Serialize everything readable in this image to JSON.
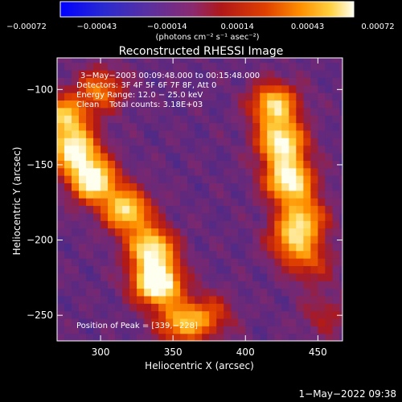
{
  "chart_data": {
    "type": "heatmap",
    "title": "Reconstructed RHESSI Image",
    "xlabel": "Heliocentric X (arcsec)",
    "ylabel": "Heliocentric Y (arcsec)",
    "xlim": [
      270,
      467
    ],
    "ylim": [
      -267,
      -79
    ],
    "x_ticks": [
      300,
      350,
      400,
      450
    ],
    "y_ticks": [
      -100,
      -150,
      -200,
      -250
    ],
    "x_tick_labels": [
      "300",
      "350",
      "400",
      "450"
    ],
    "y_tick_labels": [
      "−100",
      "−150",
      "−200",
      "−250"
    ],
    "colorbar": {
      "range": [
        -0.00072,
        0.00072
      ],
      "tick_labels": [
        "−0.00072",
        "−0.00043",
        "−0.00014",
        "0.00014",
        "0.00043",
        "0.00072"
      ],
      "units_label": "(photons cm⁻² s⁻¹ asec⁻²)"
    },
    "annotations": [
      "3−May−2003 00:09:48.000 to 00:15:48.000",
      "Detectors: 3F 4F 5F 6F 7F 8F, Att 0",
      "Energy Range: 12.0 − 25.0 keV",
      "Clean    Total counts: 3.18E+03"
    ],
    "peak_label": "Position of Peak = [339,−228]",
    "peak_position": [
      339,
      -228
    ],
    "grid": false,
    "colors": [
      "#0000ff",
      "#2020a0",
      "#4a2a8a",
      "#7a2870",
      "#b01818",
      "#e04000",
      "#ff9000",
      "#ffd040",
      "#fffff0"
    ],
    "features": [
      {
        "x": 339,
        "y": -228,
        "value": 1.0
      },
      {
        "x": 335,
        "y": -205,
        "value": 0.75
      },
      {
        "x": 318,
        "y": -180,
        "value": 0.72
      },
      {
        "x": 295,
        "y": -160,
        "value": 0.85
      },
      {
        "x": 282,
        "y": -140,
        "value": 0.78
      },
      {
        "x": 275,
        "y": -118,
        "value": 0.62
      },
      {
        "x": 300,
        "y": -100,
        "value": 0.45
      },
      {
        "x": 420,
        "y": -110,
        "value": 0.7
      },
      {
        "x": 425,
        "y": -135,
        "value": 0.8
      },
      {
        "x": 430,
        "y": -160,
        "value": 0.85
      },
      {
        "x": 440,
        "y": -185,
        "value": 0.55
      },
      {
        "x": 432,
        "y": -200,
        "value": 0.5
      },
      {
        "x": 355,
        "y": -255,
        "value": 0.55
      },
      {
        "x": 375,
        "y": -250,
        "value": 0.35
      },
      {
        "x": 455,
        "y": -250,
        "value": 0.2
      },
      {
        "x": 445,
        "y": -215,
        "value": 0.3
      }
    ]
  },
  "footer": {
    "timestamp": "1−May−2022 09:38"
  }
}
